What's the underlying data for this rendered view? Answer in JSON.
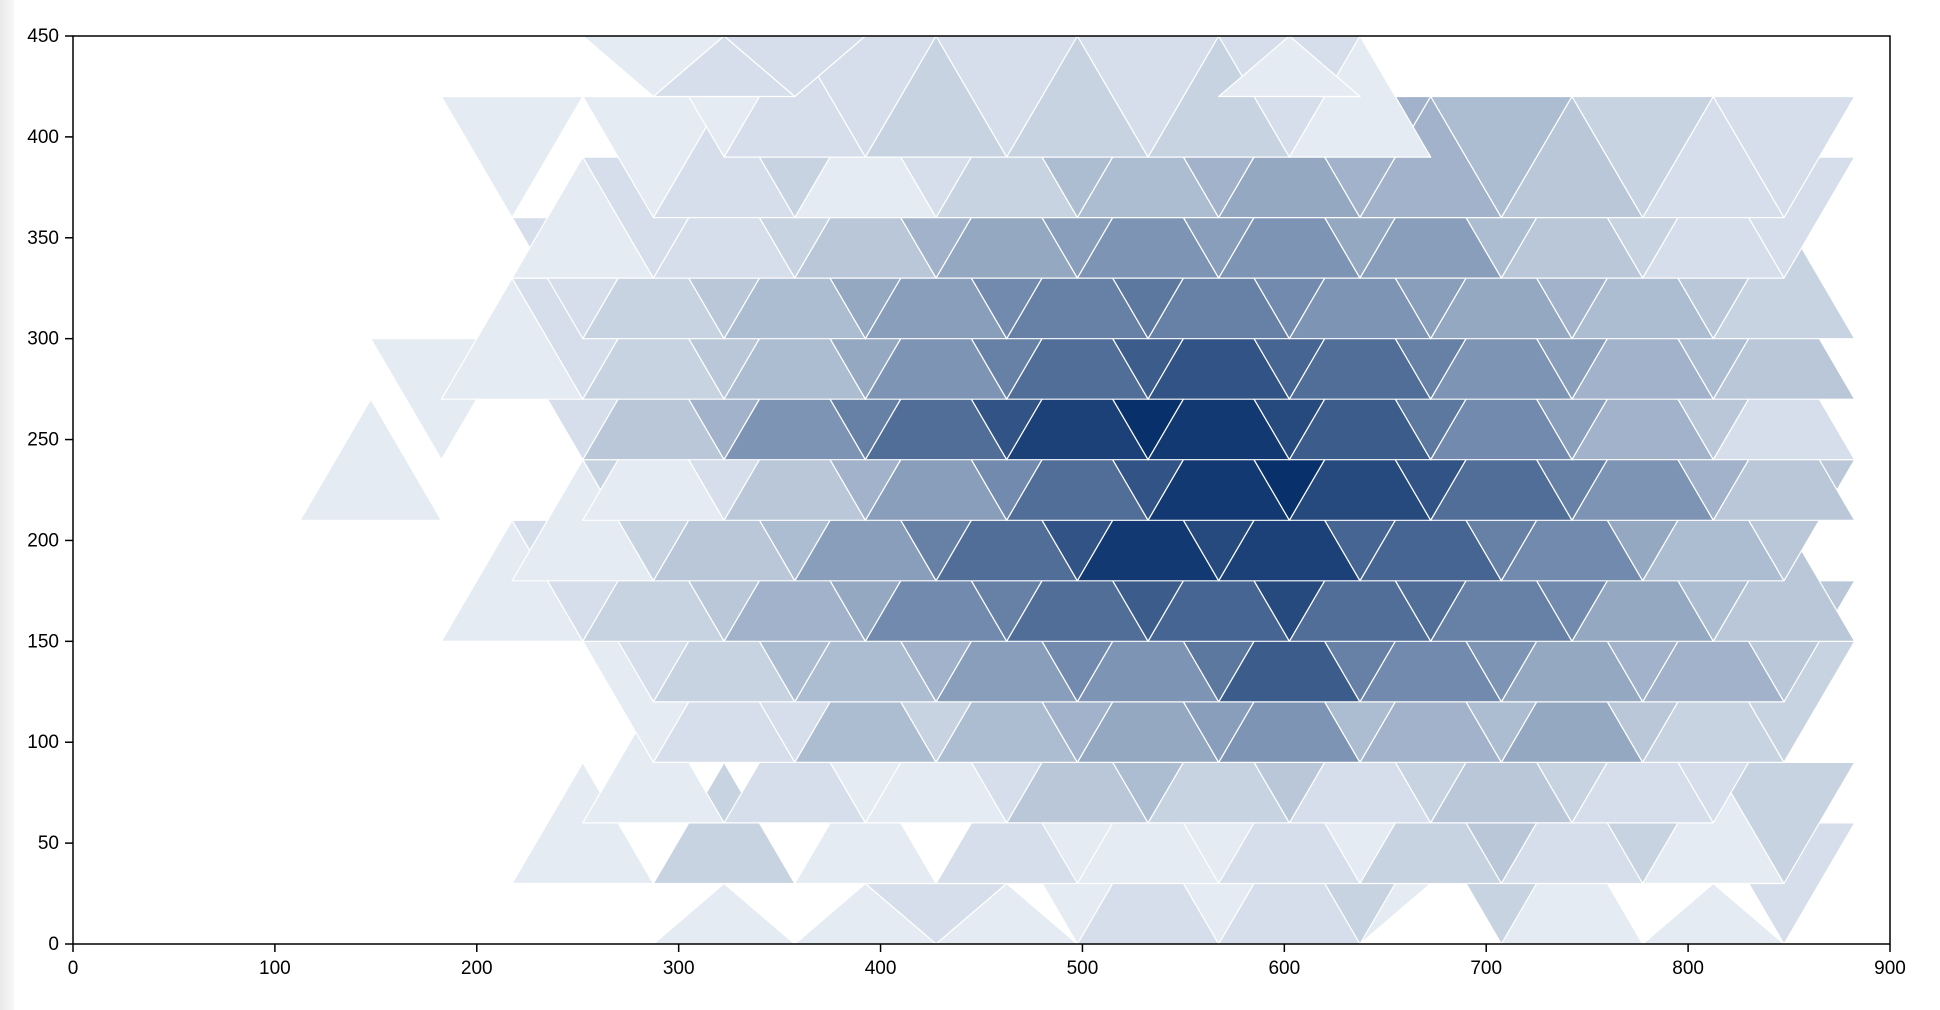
{
  "chart_data": {
    "type": "heatmap",
    "subtype": "triangular-bin",
    "title": "",
    "xlabel": "",
    "ylabel": "",
    "xlim": [
      0,
      900
    ],
    "ylim": [
      0,
      450
    ],
    "xticks": [
      0,
      100,
      200,
      300,
      400,
      500,
      600,
      700,
      800,
      900
    ],
    "yticks": [
      0,
      50,
      100,
      150,
      200,
      250,
      300,
      350,
      400,
      450
    ],
    "grid": false,
    "color_low": "#f7fbff",
    "color_high": "#08306b",
    "bin_width": 70,
    "bin_height": 60,
    "row_y_centers": [
      0,
      30,
      60,
      90,
      120,
      150,
      180,
      210,
      240,
      270,
      300,
      330,
      360,
      390,
      420,
      450
    ],
    "rows": [
      {
        "x0": 322.5,
        "values": [
          1,
          0,
          1,
          2,
          1,
          0,
          0,
          0,
          0,
          1,
          0,
          0,
          0,
          0,
          1
        ]
      },
      {
        "x0": 287.5,
        "values": [
          0,
          0,
          0,
          0,
          0,
          0,
          1,
          2,
          1,
          2,
          3,
          0,
          3,
          1,
          0,
          0,
          2,
          0,
          0,
          0,
          0,
          0,
          0,
          0
        ]
      },
      {
        "x0": 252.5,
        "values": [
          1,
          0,
          3,
          0,
          1,
          0,
          2,
          0,
          1,
          0,
          2,
          1,
          3,
          4,
          2,
          3,
          1,
          3,
          1,
          0,
          0,
          0,
          0,
          0,
          0,
          0,
          0,
          0,
          1
        ]
      },
      {
        "x0": 252.5,
        "values": [
          0,
          1,
          0,
          2,
          1,
          1,
          2,
          4,
          5,
          3,
          4,
          2,
          3,
          4,
          3,
          2,
          2,
          0,
          1,
          0,
          0,
          0,
          0,
          0,
          0,
          0,
          0,
          0,
          0
        ]
      },
      {
        "x0": 252.5,
        "values": [
          0,
          1,
          2,
          2,
          5,
          3,
          5,
          6,
          7,
          8,
          9,
          5,
          6,
          5,
          7,
          4,
          3,
          3,
          2,
          1,
          0,
          0,
          0,
          0,
          0,
          0,
          0,
          0,
          0
        ]
      },
      {
        "x0": 217.5,
        "values": [
          0,
          0,
          2,
          3,
          5,
          5,
          6,
          8,
          10,
          9,
          12,
          15,
          11,
          10,
          9,
          7,
          6,
          6,
          4,
          3,
          2,
          1,
          0,
          0,
          0,
          0,
          0,
          0,
          0,
          0,
          0
        ]
      },
      {
        "x0": 217.5,
        "values": [
          1,
          2,
          3,
          4,
          6,
          7,
          10,
          11,
          13,
          15,
          14,
          17,
          13,
          13,
          11,
          10,
          7,
          5,
          4,
          3,
          2,
          2,
          0,
          0,
          0,
          0,
          0,
          0,
          0,
          0,
          0
        ]
      },
      {
        "x0": 217.5,
        "values": [
          0,
          1,
          3,
          4,
          5,
          8,
          11,
          13,
          16,
          19,
          17,
          18,
          14,
          14,
          11,
          10,
          7,
          5,
          4,
          3,
          2,
          1,
          0,
          1,
          0,
          0,
          0,
          0,
          0,
          0,
          0
        ]
      },
      {
        "x0": 147.5,
        "values": [
          1,
          0,
          0,
          0,
          1,
          2,
          4,
          6,
          8,
          10,
          13,
          16,
          19,
          20,
          17,
          16,
          13,
          11,
          9,
          6,
          4,
          2,
          1,
          0,
          1,
          0,
          0,
          0,
          0,
          0,
          0,
          0,
          0,
          0,
          0
        ]
      },
      {
        "x0": 182.5,
        "values": [
          1,
          0,
          2,
          4,
          6,
          9,
          11,
          13,
          16,
          18,
          20,
          19,
          17,
          15,
          12,
          10,
          8,
          6,
          4,
          2,
          1,
          0,
          0,
          0,
          0,
          0,
          0,
          0,
          0,
          0,
          0,
          0,
          0
        ]
      },
      {
        "x0": 217.5,
        "values": [
          1,
          2,
          3,
          4,
          5,
          7,
          9,
          11,
          13,
          15,
          16,
          14,
          13,
          11,
          9,
          8,
          6,
          5,
          4,
          3,
          2,
          1,
          0,
          0,
          0,
          0,
          0,
          0,
          0,
          0,
          0
        ]
      },
      {
        "x0": 252.5,
        "values": [
          2,
          3,
          4,
          5,
          7,
          8,
          10,
          11,
          12,
          11,
          10,
          9,
          8,
          7,
          6,
          5,
          4,
          3,
          2,
          1,
          2,
          1,
          0,
          0,
          0,
          0,
          0,
          0,
          0
        ]
      },
      {
        "x0": 252.5,
        "values": [
          1,
          2,
          2,
          3,
          4,
          6,
          7,
          8,
          9,
          8,
          9,
          7,
          8,
          5,
          4,
          3,
          2,
          2,
          1,
          1,
          0,
          0,
          0,
          0,
          0,
          0,
          0,
          0,
          0
        ]
      },
      {
        "x0": 217.5,
        "values": [
          1,
          0,
          1,
          2,
          3,
          1,
          2,
          3,
          5,
          5,
          6,
          7,
          6,
          6,
          5,
          4,
          3,
          2,
          2,
          1,
          0,
          0,
          0,
          0,
          0,
          0,
          0,
          0,
          0,
          0,
          0
        ]
      },
      {
        "x0": 287.5,
        "values": [
          0,
          1,
          2,
          2,
          3,
          2,
          3,
          2,
          3,
          2,
          1,
          0,
          0,
          0,
          0,
          0,
          0,
          0,
          0,
          0,
          0,
          0,
          0,
          0
        ]
      },
      {
        "x0": 287.5,
        "values": [
          1,
          2,
          2,
          0,
          0,
          0,
          0,
          0,
          0,
          1,
          0,
          0,
          0,
          0,
          0,
          0,
          0,
          0,
          0,
          0,
          0,
          0,
          0,
          0
        ]
      }
    ],
    "max_value": 20
  }
}
